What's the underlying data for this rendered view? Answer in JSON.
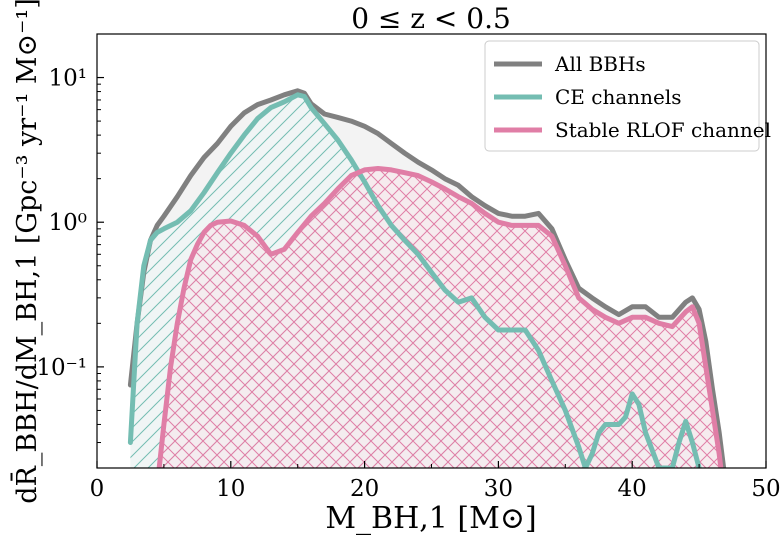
{
  "chart_data": {
    "type": "area",
    "title": "0 ≤ z < 0.5",
    "xlabel": "M_BH,1 [M⊙]",
    "ylabel": "dR̄_BBH/dM_BH,1 [Gpc⁻³ yr⁻¹ M⊙⁻¹]",
    "xlim": [
      0,
      50
    ],
    "ylim": [
      0.02,
      20
    ],
    "yscale": "log",
    "grid": false,
    "legend_position": "top-right",
    "x_ticks": [
      0,
      10,
      20,
      30,
      40,
      50
    ],
    "x_tick_labels": [
      "0",
      "10",
      "20",
      "30",
      "40",
      "50"
    ],
    "y_ticks": [
      0.1,
      1,
      10
    ],
    "y_tick_labels": [
      "10⁻¹",
      "10⁰",
      "10¹"
    ],
    "series": [
      {
        "name": "All BBHs",
        "color": "#808080",
        "fill": "#e9e9e9",
        "hatch": "none",
        "x": [
          2.5,
          3,
          3.5,
          4,
          4.5,
          5,
          6,
          7,
          8,
          9,
          10,
          11,
          12,
          13,
          14,
          15,
          15.5,
          16,
          17,
          18,
          19,
          20,
          21,
          22,
          23,
          24,
          25,
          26,
          27,
          28,
          29,
          30,
          31,
          32,
          33,
          34,
          35,
          36,
          37,
          38,
          39,
          40,
          41,
          42,
          43,
          44,
          44.5,
          45,
          45.5,
          46,
          46.5,
          47
        ],
        "y": [
          0.075,
          0.2,
          0.45,
          0.75,
          0.95,
          1.1,
          1.5,
          2.1,
          2.8,
          3.5,
          4.6,
          5.7,
          6.5,
          7.0,
          7.6,
          8.1,
          7.8,
          6.6,
          5.6,
          5.3,
          5.0,
          4.6,
          4.1,
          3.5,
          3.0,
          2.6,
          2.3,
          2.0,
          1.8,
          1.5,
          1.3,
          1.15,
          1.1,
          1.1,
          1.15,
          0.9,
          0.55,
          0.35,
          0.3,
          0.26,
          0.23,
          0.26,
          0.26,
          0.22,
          0.22,
          0.28,
          0.3,
          0.25,
          0.15,
          0.07,
          0.035,
          0.015
        ]
      },
      {
        "name": "CE channels",
        "color": "#74bdb2",
        "fill": "#edf6f5",
        "hatch": "diagonal",
        "x": [
          2.5,
          3,
          3.5,
          4,
          4.5,
          5,
          6,
          7,
          8,
          9,
          10,
          11,
          12,
          13,
          14,
          15,
          15.5,
          16,
          17,
          18,
          19,
          20,
          21,
          22,
          23,
          24,
          25,
          26,
          27,
          28,
          29,
          30,
          31,
          32,
          33,
          34,
          35,
          36,
          36.5,
          37,
          37.5,
          38,
          39,
          39.5,
          40,
          40.5,
          41,
          42,
          43,
          43.5,
          44,
          44.5,
          45,
          45.3
        ],
        "y": [
          0.03,
          0.2,
          0.5,
          0.75,
          0.85,
          0.9,
          1.0,
          1.2,
          1.6,
          2.2,
          3.0,
          4.0,
          5.2,
          6.2,
          6.8,
          7.6,
          7.4,
          6.2,
          4.8,
          3.7,
          2.7,
          1.9,
          1.3,
          0.95,
          0.75,
          0.6,
          0.45,
          0.34,
          0.28,
          0.3,
          0.22,
          0.18,
          0.18,
          0.18,
          0.13,
          0.08,
          0.05,
          0.028,
          0.02,
          0.025,
          0.035,
          0.04,
          0.04,
          0.045,
          0.065,
          0.055,
          0.035,
          0.02,
          0.02,
          0.03,
          0.042,
          0.03,
          0.02,
          0.015
        ]
      },
      {
        "name": "Stable RLOF channel",
        "color": "#e07ea6",
        "fill": "#f7e3ea",
        "hatch": "cross",
        "x": [
          4.5,
          5,
          5.5,
          6,
          6.5,
          7,
          7.5,
          8,
          8.5,
          9,
          10,
          11,
          12,
          13,
          14,
          15,
          16,
          17,
          18,
          19,
          20,
          21,
          22,
          23,
          24,
          25,
          26,
          27,
          28,
          29,
          30,
          31,
          32,
          33,
          34,
          35,
          36,
          37,
          38,
          39,
          40,
          41,
          42,
          43,
          44,
          44.5,
          45,
          45.5,
          46,
          46.5,
          47
        ],
        "y": [
          0.015,
          0.04,
          0.1,
          0.2,
          0.35,
          0.55,
          0.7,
          0.85,
          0.95,
          1.0,
          1.02,
          0.95,
          0.8,
          0.6,
          0.65,
          0.85,
          1.1,
          1.35,
          1.7,
          2.1,
          2.3,
          2.35,
          2.3,
          2.2,
          2.1,
          1.9,
          1.7,
          1.5,
          1.35,
          1.15,
          1.0,
          0.95,
          0.95,
          0.95,
          0.8,
          0.5,
          0.3,
          0.25,
          0.22,
          0.2,
          0.22,
          0.22,
          0.2,
          0.19,
          0.24,
          0.26,
          0.2,
          0.1,
          0.05,
          0.025,
          0.01
        ]
      }
    ]
  }
}
